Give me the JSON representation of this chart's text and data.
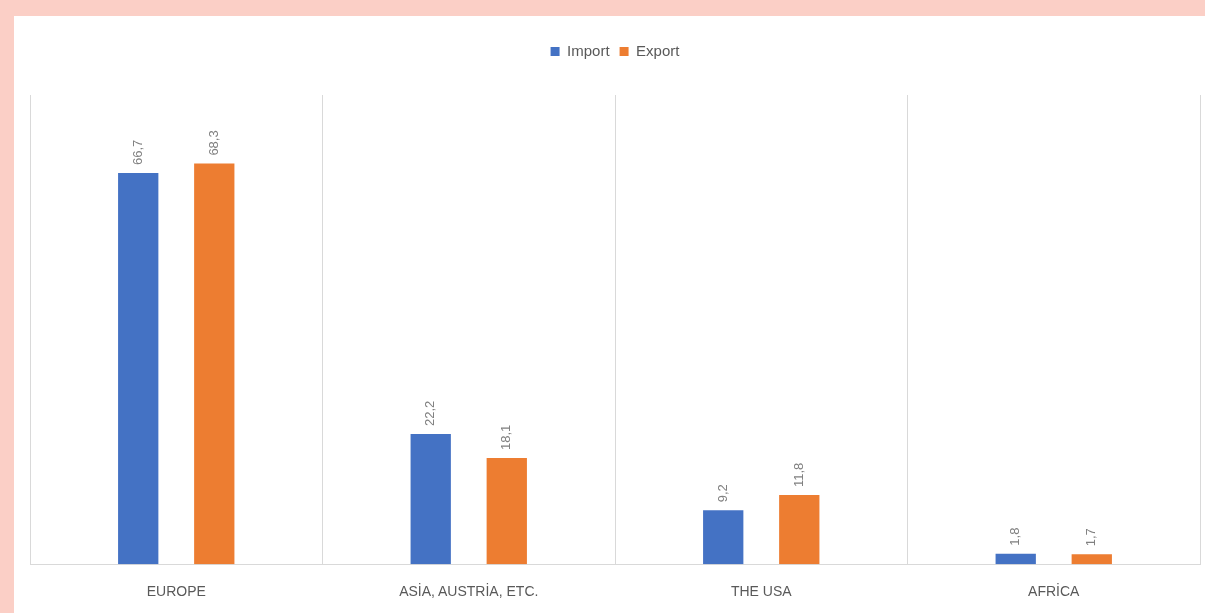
{
  "chart_data": {
    "type": "bar",
    "categories": [
      "EUROPE",
      "ASİA, AUSTRİA, ETC.",
      "THE USA",
      "AFRİCA"
    ],
    "series": [
      {
        "name": "Import",
        "color": "#4472c4",
        "values": [
          66.7,
          22.2,
          9.2,
          1.8
        ],
        "value_labels": [
          "66,7",
          "22,2",
          "9,2",
          "1,8"
        ]
      },
      {
        "name": "Export",
        "color": "#ed7d31",
        "values": [
          68.3,
          18.1,
          11.8,
          1.7
        ],
        "value_labels": [
          "68,3",
          "18,1",
          "11,8",
          "1,7"
        ]
      }
    ],
    "ylim": [
      0,
      80
    ],
    "tick_labels": "x",
    "grid": "x",
    "legend": "top"
  }
}
